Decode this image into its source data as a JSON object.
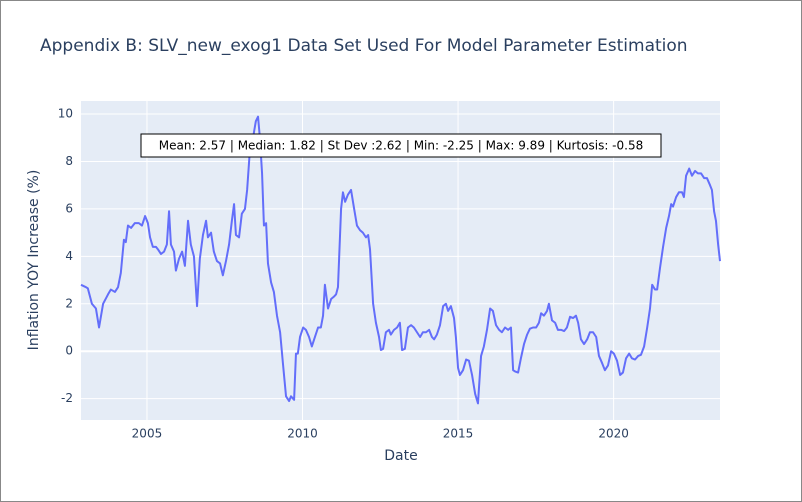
{
  "chart_data": {
    "type": "line",
    "title": "Appendix B: SLV_new_exog1 Data Set Used For Model Parameter Estimation",
    "xlabel": "Date",
    "ylabel": "Inflation YOY Increase (%)",
    "annotations": [
      "Mean: 2.57 | Median: 1.82 | St Dev :2.62 | Min: -2.25 | Max: 9.89 | Kurtosis: -0.58"
    ],
    "color": "#636efa",
    "grid": true,
    "xlim": [
      2002.88,
      2023.42
    ],
    "xticks": [
      2005,
      2010,
      2015,
      2020
    ],
    "ylim": [
      -2.9,
      10.55
    ],
    "yticks": [
      -2,
      0,
      2,
      4,
      6,
      8,
      10
    ],
    "x": [
      2002.88,
      2003.04,
      2003.1,
      2003.23,
      2003.36,
      2003.46,
      2003.59,
      2003.75,
      2003.84,
      2003.97,
      2004.07,
      2004.16,
      2004.26,
      2004.32,
      2004.39,
      2004.49,
      2004.61,
      2004.74,
      2004.84,
      2004.94,
      2005.03,
      2005.1,
      2005.19,
      2005.29,
      2005.35,
      2005.45,
      2005.55,
      2005.64,
      2005.71,
      2005.77,
      2005.87,
      2005.93,
      2006.03,
      2006.13,
      2006.22,
      2006.32,
      2006.41,
      2006.51,
      2006.61,
      2006.7,
      2006.8,
      2006.9,
      2006.96,
      2007.06,
      2007.15,
      2007.25,
      2007.35,
      2007.44,
      2007.54,
      2007.64,
      2007.73,
      2007.8,
      2007.86,
      2007.96,
      2008.05,
      2008.15,
      2008.22,
      2008.31,
      2008.41,
      2008.5,
      2008.57,
      2008.63,
      2008.7,
      2008.76,
      2008.83,
      2008.89,
      2008.99,
      2009.08,
      2009.18,
      2009.28,
      2009.37,
      2009.47,
      2009.57,
      2009.63,
      2009.73,
      2009.79,
      2009.85,
      2009.92,
      2010.02,
      2010.11,
      2010.21,
      2010.3,
      2010.4,
      2010.5,
      2010.59,
      2010.66,
      2010.72,
      2010.82,
      2010.92,
      2011.01,
      2011.08,
      2011.14,
      2011.24,
      2011.3,
      2011.37,
      2011.46,
      2011.56,
      2011.66,
      2011.75,
      2011.85,
      2011.94,
      2012.04,
      2012.11,
      2012.17,
      2012.27,
      2012.36,
      2012.46,
      2012.52,
      2012.59,
      2012.68,
      2012.78,
      2012.84,
      2012.94,
      2013.04,
      2013.13,
      2013.2,
      2013.29,
      2013.39,
      2013.49,
      2013.58,
      2013.68,
      2013.78,
      2013.87,
      2013.97,
      2014.07,
      2014.16,
      2014.23,
      2014.32,
      2014.42,
      2014.52,
      2014.61,
      2014.68,
      2014.77,
      2014.87,
      2014.93,
      2015.0,
      2015.06,
      2015.16,
      2015.26,
      2015.35,
      2015.45,
      2015.55,
      2015.64,
      2015.74,
      2015.83,
      2015.93,
      2016.03,
      2016.12,
      2016.22,
      2016.32,
      2016.41,
      2016.51,
      2016.61,
      2016.7,
      2016.77,
      2016.83,
      2016.93,
      2017.02,
      2017.12,
      2017.22,
      2017.31,
      2017.41,
      2017.51,
      2017.6,
      2017.67,
      2017.76,
      2017.86,
      2017.92,
      2018.02,
      2018.12,
      2018.21,
      2018.31,
      2018.41,
      2018.5,
      2018.6,
      2018.7,
      2018.79,
      2018.86,
      2018.95,
      2019.05,
      2019.15,
      2019.24,
      2019.34,
      2019.44,
      2019.53,
      2019.63,
      2019.72,
      2019.82,
      2019.92,
      2020.01,
      2020.11,
      2020.21,
      2020.3,
      2020.4,
      2020.5,
      2020.59,
      2020.69,
      2020.79,
      2020.88,
      2020.98,
      2021.08,
      2021.17,
      2021.24,
      2021.33,
      2021.4,
      2021.49,
      2021.59,
      2021.69,
      2021.78,
      2021.85,
      2021.91,
      2022.01,
      2022.1,
      2022.2,
      2022.26,
      2022.33,
      2022.43,
      2022.52,
      2022.62,
      2022.71,
      2022.81,
      2022.91,
      2023.0,
      2023.1,
      2023.16,
      2023.23,
      2023.29,
      2023.36,
      2023.42
    ],
    "values": [
      2.8,
      2.7,
      2.65,
      2.0,
      1.8,
      1.0,
      2.0,
      2.4,
      2.6,
      2.5,
      2.7,
      3.3,
      4.7,
      4.6,
      5.3,
      5.2,
      5.4,
      5.4,
      5.3,
      5.7,
      5.4,
      4.8,
      4.4,
      4.4,
      4.3,
      4.1,
      4.2,
      4.5,
      5.9,
      4.5,
      4.2,
      3.4,
      3.9,
      4.2,
      3.6,
      5.5,
      4.5,
      4.0,
      1.9,
      3.9,
      4.9,
      5.5,
      4.8,
      5.0,
      4.2,
      3.8,
      3.7,
      3.2,
      3.8,
      4.5,
      5.5,
      6.2,
      4.9,
      4.8,
      5.8,
      6.0,
      6.8,
      8.5,
      9.0,
      9.7,
      9.89,
      9.0,
      7.5,
      5.3,
      5.4,
      3.7,
      2.9,
      2.5,
      1.5,
      0.8,
      -0.5,
      -1.9,
      -2.1,
      -1.9,
      -2.05,
      -0.1,
      -0.1,
      0.6,
      1.0,
      0.9,
      0.6,
      0.2,
      0.6,
      1.0,
      1.0,
      1.5,
      2.8,
      1.8,
      2.2,
      2.3,
      2.4,
      2.7,
      6.0,
      6.7,
      6.3,
      6.6,
      6.8,
      6.0,
      5.3,
      5.1,
      5.0,
      4.8,
      4.9,
      4.3,
      2.0,
      1.2,
      0.6,
      0.05,
      0.1,
      0.8,
      0.9,
      0.7,
      0.9,
      1.0,
      1.2,
      0.05,
      0.1,
      1.0,
      1.1,
      1.0,
      0.8,
      0.6,
      0.8,
      0.8,
      0.9,
      0.6,
      0.5,
      0.7,
      1.1,
      1.9,
      2.0,
      1.7,
      1.9,
      1.4,
      0.6,
      -0.7,
      -1.0,
      -0.8,
      -0.35,
      -0.4,
      -1.0,
      -1.8,
      -2.2,
      -0.2,
      0.2,
      0.9,
      1.8,
      1.7,
      1.1,
      0.9,
      0.8,
      1.0,
      0.9,
      1.0,
      -0.8,
      -0.85,
      -0.9,
      -0.3,
      0.3,
      0.7,
      0.95,
      1.0,
      1.0,
      1.2,
      1.6,
      1.5,
      1.7,
      2.0,
      1.3,
      1.2,
      0.9,
      0.9,
      0.85,
      1.0,
      1.45,
      1.4,
      1.5,
      1.2,
      0.5,
      0.3,
      0.5,
      0.8,
      0.8,
      0.6,
      -0.2,
      -0.5,
      -0.8,
      -0.6,
      0.0,
      -0.1,
      -0.4,
      -1.0,
      -0.9,
      -0.3,
      -0.1,
      -0.3,
      -0.35,
      -0.2,
      -0.15,
      0.2,
      1.0,
      1.8,
      2.8,
      2.6,
      2.6,
      3.5,
      4.4,
      5.2,
      5.7,
      6.2,
      6.1,
      6.5,
      6.7,
      6.7,
      6.5,
      7.4,
      7.7,
      7.4,
      7.6,
      7.5,
      7.5,
      7.3,
      7.3,
      7.0,
      6.8,
      5.9,
      5.5,
      4.5,
      3.8
    ]
  }
}
